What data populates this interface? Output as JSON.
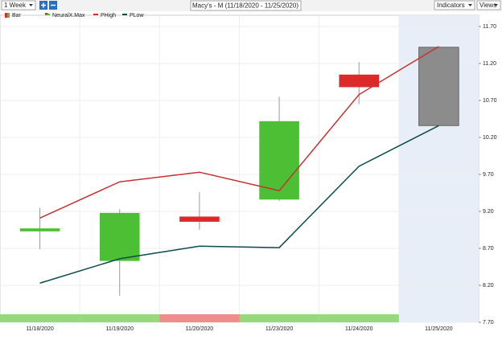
{
  "toolbar": {
    "period": "1 Week",
    "title": "Macy's - M (11/18/2020 - 11/25/2020)",
    "indicators": "Indicators",
    "views": "Views"
  },
  "chart_data": {
    "type": "candlestick",
    "categories": [
      "11/18/2020",
      "11/19/2020",
      "11/20/2020",
      "11/23/2020",
      "11/24/2020",
      "11/25/2020"
    ],
    "candles": {
      "name": "Bar",
      "up_color": "#4cbf34",
      "down_color": "#dc2a2a",
      "open": [
        8.93,
        8.53,
        9.13,
        9.36,
        11.05
      ],
      "high": [
        9.25,
        9.23,
        9.46,
        10.75,
        11.22
      ],
      "low": [
        8.69,
        8.06,
        8.95,
        9.34,
        10.65
      ],
      "close": [
        8.97,
        9.18,
        9.06,
        10.42,
        10.88
      ]
    },
    "forecast": {
      "name": "NeuralX.Max",
      "color": "#8c8c8c",
      "low": 10.36,
      "high": 11.42,
      "shade": "#e8eef7"
    },
    "series": [
      {
        "name": "PHigh",
        "color": "#c83232",
        "values": [
          9.11,
          9.6,
          9.73,
          9.48,
          10.78,
          11.43
        ]
      },
      {
        "name": "PLow",
        "color": "#0b4d4a",
        "values": [
          8.23,
          8.56,
          8.73,
          8.71,
          9.81,
          10.36
        ]
      }
    ],
    "strip_colors": [
      "#96d97d",
      "#96d97d",
      "#f08c8c",
      "#96d97d",
      "#96d97d"
    ],
    "ylim": [
      7.7,
      11.7
    ],
    "yticks": [
      {
        "value": 7.7,
        "label": "7.70"
      },
      {
        "value": 8.2,
        "label": "8.20"
      },
      {
        "value": 8.7,
        "label": "8.70"
      },
      {
        "value": 9.2,
        "label": "9.20"
      },
      {
        "value": 9.7,
        "label": "9.70"
      },
      {
        "value": 10.2,
        "label": "10.20"
      },
      {
        "value": 10.7,
        "label": "10.70"
      },
      {
        "value": 11.2,
        "label": "11.20"
      },
      {
        "value": 11.7,
        "label": "11.70"
      }
    ],
    "grid": true
  }
}
